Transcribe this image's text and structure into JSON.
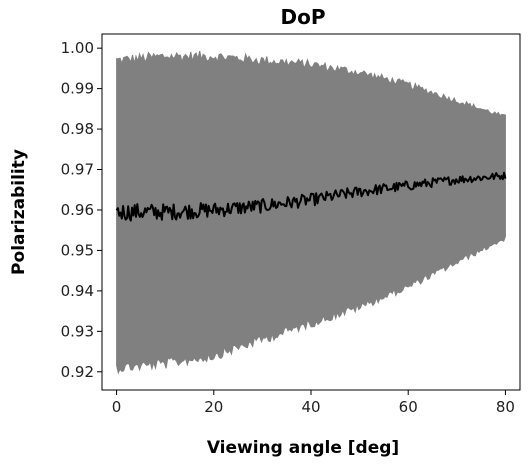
{
  "chart_data": {
    "type": "line",
    "title": "DoP",
    "xlabel": "Viewing angle [deg]",
    "ylabel": "Polarizability",
    "xlim": [
      -3,
      83
    ],
    "ylim": [
      0.9155,
      1.0035
    ],
    "x_ticks": [
      0,
      20,
      40,
      60,
      80
    ],
    "x_tick_labels": [
      "0",
      "20",
      "40",
      "60",
      "80"
    ],
    "y_ticks": [
      0.92,
      0.93,
      0.94,
      0.95,
      0.96,
      0.97,
      0.98,
      0.99,
      1.0
    ],
    "y_tick_labels": [
      "0.92",
      "0.93",
      "0.94",
      "0.95",
      "0.96",
      "0.97",
      "0.98",
      "0.99",
      "1.00"
    ],
    "grid": false,
    "legend": "none",
    "series": [
      {
        "kind": "band",
        "color": "#808080",
        "x": [
          0,
          10,
          20,
          30,
          40,
          50,
          60,
          70,
          80
        ],
        "lower": [
          0.921,
          0.922,
          0.924,
          0.928,
          0.932,
          0.936,
          0.941,
          0.947,
          0.953
        ],
        "upper": [
          0.997,
          0.998,
          0.998,
          0.997,
          0.996,
          0.994,
          0.991,
          0.987,
          0.983
        ]
      },
      {
        "kind": "line",
        "color": "#000000",
        "x": [
          0,
          10,
          20,
          30,
          40,
          50,
          60,
          70,
          80
        ],
        "y": [
          0.9595,
          0.9595,
          0.96,
          0.961,
          0.9625,
          0.9645,
          0.966,
          0.9675,
          0.9685
        ]
      }
    ]
  }
}
